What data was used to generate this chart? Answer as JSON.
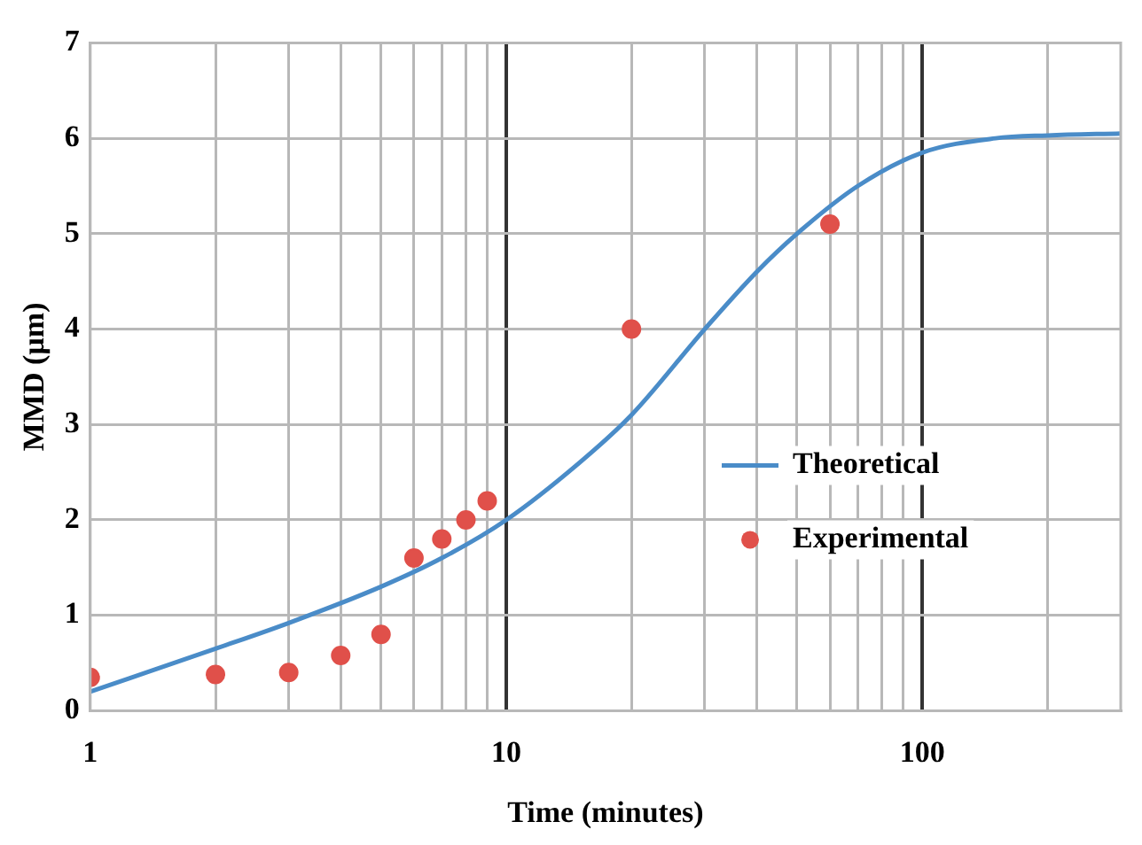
{
  "chart_data": {
    "type": "scatter",
    "xlabel": "Time (minutes)",
    "ylabel": "MMD (µm)",
    "log": "x",
    "xlim": [
      1,
      300
    ],
    "xticks": [
      1,
      {
        "value": 2,
        "label": null
      },
      {
        "value": 3,
        "label": null
      },
      {
        "value": 4,
        "label": null
      },
      {
        "value": 5,
        "label": null
      },
      {
        "value": 6,
        "label": null
      },
      {
        "value": 7,
        "label": null
      },
      {
        "value": 8,
        "label": null
      },
      {
        "value": 9,
        "label": null
      },
      10,
      {
        "value": 20,
        "label": null
      },
      {
        "value": 30,
        "label": null
      },
      {
        "value": 40,
        "label": null
      },
      {
        "value": 50,
        "label": null
      },
      {
        "value": 60,
        "label": null
      },
      {
        "value": 70,
        "label": null
      },
      {
        "value": 80,
        "label": null
      },
      {
        "value": 90,
        "label": null
      },
      100,
      {
        "value": 200,
        "label": null
      }
    ],
    "ylim": [
      0,
      7
    ],
    "yticks": [
      0,
      1,
      2,
      3,
      4,
      5,
      6,
      7
    ],
    "grid": true,
    "legend": "right",
    "series": [
      {
        "name": "Theoretical",
        "type": "line",
        "color": "#4a8cc8",
        "marker": "none",
        "line_style": "solid",
        "x": [
          1,
          2,
          3,
          5,
          7,
          10,
          15,
          20,
          30,
          40,
          50,
          70,
          100,
          150,
          200,
          300
        ],
        "values": [
          0.2,
          0.65,
          0.92,
          1.3,
          1.6,
          2.0,
          2.6,
          3.1,
          4.0,
          4.6,
          5.0,
          5.5,
          5.85,
          6.0,
          6.03,
          6.05
        ]
      },
      {
        "name": "Experimental",
        "color": "#e0504a",
        "marker": "circle",
        "x": [
          1,
          2,
          3,
          4,
          5,
          6,
          7,
          8,
          9,
          20,
          60
        ],
        "values": [
          0.35,
          0.38,
          0.4,
          0.58,
          0.8,
          1.6,
          1.8,
          2.0,
          2.2,
          4.0,
          5.1
        ]
      }
    ]
  }
}
